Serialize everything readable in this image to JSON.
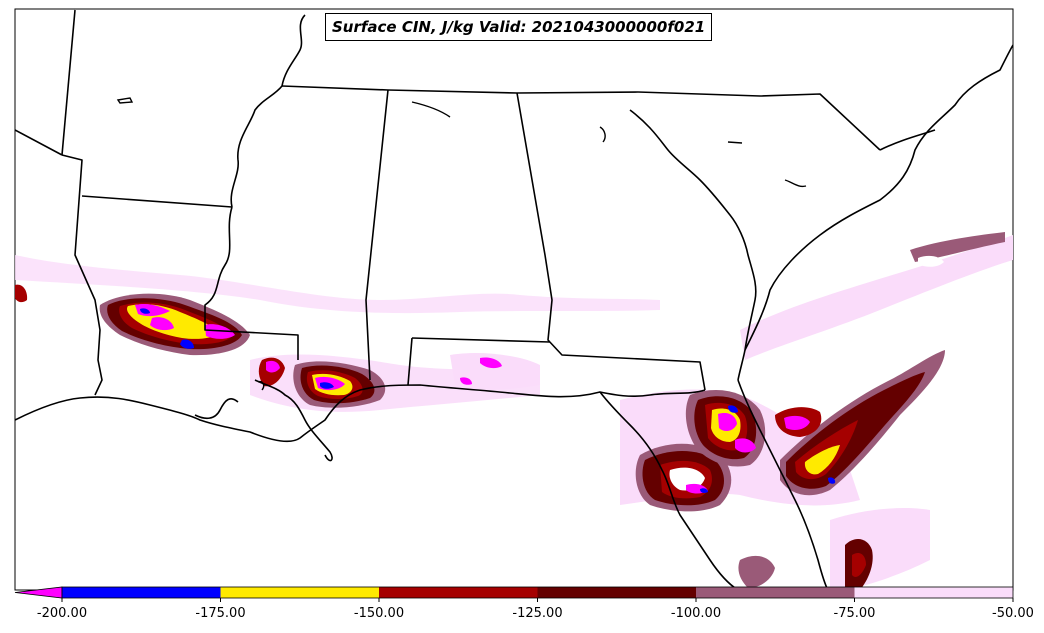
{
  "map": {
    "title": "Surface CIN, J/kg Valid: 2021043000000f021"
  },
  "colorbar": {
    "ticks": [
      "-200.00",
      "-175.00",
      "-150.00",
      "-125.00",
      "-100.00",
      "-75.00",
      "-50.00"
    ],
    "bins": [
      {
        "from": -200,
        "to": -175,
        "color": "#0000ff"
      },
      {
        "from": -175,
        "to": -150,
        "color": "#ffea00"
      },
      {
        "from": -150,
        "to": -125,
        "color": "#a50000"
      },
      {
        "from": -125,
        "to": -100,
        "color": "#640000"
      },
      {
        "from": -100,
        "to": -75,
        "color": "#9a5a78"
      },
      {
        "from": -75,
        "to": -50,
        "color": "#fadcfa"
      }
    ],
    "extend_color": "#ff00ff"
  }
}
